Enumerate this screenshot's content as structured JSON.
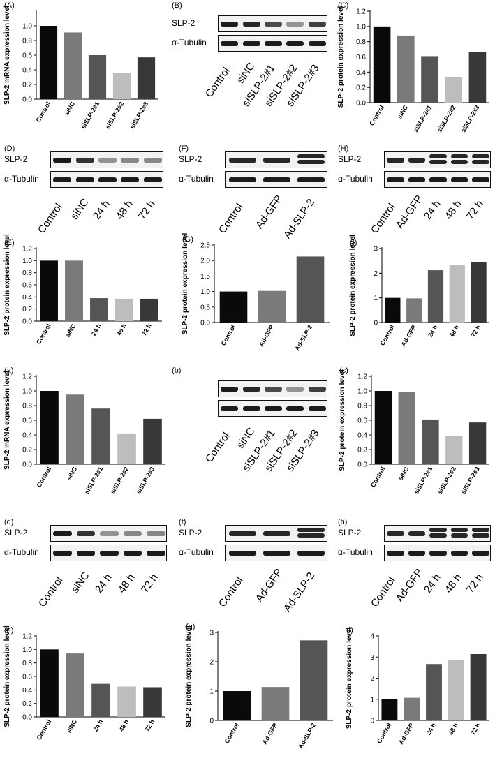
{
  "colors": {
    "black": "#0a0a0a",
    "gray2": "#7a7a7a",
    "gray3": "#555555",
    "light": "#bdbdbd",
    "dark": "#383838"
  },
  "charts": {
    "A": {
      "label": "(A)",
      "chart_data": {
        "type": "bar",
        "categories": [
          "Control",
          "siNC",
          "siSLP-2#1",
          "siSLP-2#2",
          "siSLP-2#3"
        ],
        "values": [
          1.0,
          0.91,
          0.6,
          0.36,
          0.57
        ],
        "ylabel": "SLP-2 mRNA expression level",
        "ylim": [
          0,
          1.2
        ],
        "yticks": [
          "0.0",
          "0.2",
          "0.4",
          "0.6",
          "0.8",
          "1.0"
        ],
        "colors": [
          "#0a0a0a",
          "#7a7a7a",
          "#555555",
          "#bdbdbd",
          "#383838"
        ]
      }
    },
    "C": {
      "label": "(C)",
      "chart_data": {
        "type": "bar",
        "categories": [
          "Control",
          "siNC",
          "siSLP-2#1",
          "siSLP-2#2",
          "siSLP-2#3"
        ],
        "values": [
          1.0,
          0.88,
          0.61,
          0.33,
          0.66
        ],
        "ylabel": "SLP-2 protein expression level",
        "ylim": [
          0,
          1.2
        ],
        "yticks": [
          "0.0",
          "0.2",
          "0.4",
          "0.6",
          "0.8",
          "1.0",
          "1.2"
        ],
        "colors": [
          "#0a0a0a",
          "#7a7a7a",
          "#555555",
          "#bdbdbd",
          "#383838"
        ]
      }
    },
    "E": {
      "label": "(E)",
      "chart_data": {
        "type": "bar",
        "categories": [
          "Control",
          "siNC",
          "24 h",
          "48 h",
          "72 h"
        ],
        "values": [
          1.0,
          1.0,
          0.38,
          0.37,
          0.37
        ],
        "ylabel": "SLP-2 protein expression level",
        "ylim": [
          0,
          1.2
        ],
        "yticks": [
          "0.0",
          "0.2",
          "0.4",
          "0.6",
          "0.8",
          "1.0",
          "1.2"
        ],
        "colors": [
          "#0a0a0a",
          "#7a7a7a",
          "#555555",
          "#bdbdbd",
          "#383838"
        ]
      }
    },
    "G": {
      "label": "(G)",
      "chart_data": {
        "type": "bar",
        "categories": [
          "Control",
          "Ad-GFP",
          "Ad-SLP-2"
        ],
        "values": [
          1.0,
          1.02,
          2.13
        ],
        "ylabel": "SLP-2 protein expression level",
        "ylim": [
          0,
          2.5
        ],
        "yticks": [
          "0.0",
          "0.5",
          "1.0",
          "1.5",
          "2.0",
          "2.5"
        ],
        "colors": [
          "#0a0a0a",
          "#7a7a7a",
          "#555555"
        ]
      }
    },
    "I": {
      "label": "(I)",
      "chart_data": {
        "type": "bar",
        "categories": [
          "Control",
          "Ad-GFP",
          "24 h",
          "48 h",
          "72 h"
        ],
        "values": [
          1.0,
          0.98,
          2.12,
          2.32,
          2.44
        ],
        "ylabel": "SLP-2 protein expression level",
        "ylim": [
          0,
          3
        ],
        "yticks": [
          "0",
          "1",
          "2",
          "3"
        ],
        "colors": [
          "#0a0a0a",
          "#7a7a7a",
          "#555555",
          "#bdbdbd",
          "#383838"
        ]
      }
    },
    "a": {
      "label": "(a)",
      "chart_data": {
        "type": "bar",
        "categories": [
          "Control",
          "siNC",
          "siSLP-2#1",
          "siSLP-2#2",
          "siSLP-2#3"
        ],
        "values": [
          1.0,
          0.95,
          0.76,
          0.42,
          0.62
        ],
        "ylabel": "SLP-2 mRNA expression level",
        "ylim": [
          0,
          1.2
        ],
        "yticks": [
          "0.0",
          "0.2",
          "0.4",
          "0.6",
          "0.8",
          "1.0",
          "1.2"
        ],
        "colors": [
          "#0a0a0a",
          "#7a7a7a",
          "#555555",
          "#bdbdbd",
          "#383838"
        ]
      }
    },
    "c": {
      "label": "(c)",
      "chart_data": {
        "type": "bar",
        "categories": [
          "Control",
          "siNC",
          "siSLP-2#1",
          "siSLP-2#2",
          "siSLP-2#3"
        ],
        "values": [
          1.0,
          0.99,
          0.61,
          0.39,
          0.57
        ],
        "ylabel": "SLP-2 protein expression level",
        "ylim": [
          0,
          1.2
        ],
        "yticks": [
          "0.0",
          "0.2",
          "0.4",
          "0.6",
          "0.8",
          "1.0",
          "1.2"
        ],
        "colors": [
          "#0a0a0a",
          "#7a7a7a",
          "#555555",
          "#bdbdbd",
          "#383838"
        ]
      }
    },
    "e": {
      "label": "(e)",
      "chart_data": {
        "type": "bar",
        "categories": [
          "Control",
          "siNC",
          "24 h",
          "48 h",
          "72 h"
        ],
        "values": [
          1.0,
          0.94,
          0.49,
          0.45,
          0.44
        ],
        "ylabel": "SLP-2 protein expression level",
        "ylim": [
          0,
          1.2
        ],
        "yticks": [
          "0.0",
          "0.2",
          "0.4",
          "0.6",
          "0.8",
          "1.0",
          "1.2"
        ],
        "colors": [
          "#0a0a0a",
          "#7a7a7a",
          "#555555",
          "#bdbdbd",
          "#383838"
        ]
      }
    },
    "g": {
      "label": "(g)",
      "chart_data": {
        "type": "bar",
        "categories": [
          "Control",
          "Ad-GFP",
          "Ad-SLP-2"
        ],
        "values": [
          1.0,
          1.14,
          2.73
        ],
        "ylabel": "SLP-2 protein expression level",
        "ylim": [
          0,
          3
        ],
        "yticks": [
          "0",
          "1",
          "2",
          "3"
        ],
        "colors": [
          "#0a0a0a",
          "#7a7a7a",
          "#555555"
        ]
      }
    },
    "i": {
      "label": "(i)",
      "chart_data": {
        "type": "bar",
        "categories": [
          "Control",
          "Ad-GFP",
          "24 h",
          "48 h",
          "72 h"
        ],
        "values": [
          1.0,
          1.07,
          2.67,
          2.87,
          3.14
        ],
        "ylabel": "SLP-2 protein expression level",
        "ylim": [
          0,
          4
        ],
        "yticks": [
          "0",
          "1",
          "2",
          "3",
          "4"
        ],
        "colors": [
          "#0a0a0a",
          "#7a7a7a",
          "#555555",
          "#bdbdbd",
          "#383838"
        ]
      }
    }
  },
  "blots": {
    "B": {
      "label": "(B)",
      "rows": [
        "SLP-2",
        "α-Tubulin"
      ],
      "lanes": [
        "Control",
        "siNC",
        "siSLP-2#1",
        "siSLP-2#2",
        "siSLP-2#3"
      ]
    },
    "D": {
      "label": "(D)",
      "rows": [
        "SLP-2",
        "α-Tubulin"
      ],
      "lanes": [
        "Control",
        "siNC",
        "24 h",
        "48 h",
        "72 h"
      ]
    },
    "F": {
      "label": "(F)",
      "rows": [
        "SLP-2",
        "α-Tubulin"
      ],
      "lanes": [
        "Control",
        "Ad-GFP",
        "Ad-SLP-2"
      ]
    },
    "H": {
      "label": "(H)",
      "rows": [
        "SLP-2",
        "α-Tubulin"
      ],
      "lanes": [
        "Control",
        "Ad-GFP",
        "24 h",
        "48 h",
        "72 h"
      ]
    },
    "b": {
      "label": "(b)",
      "rows": [
        "",
        ""
      ],
      "lanes": [
        "Control",
        "siNC",
        "siSLP-2#1",
        "siSLP-2#2",
        "siSLP-2#3"
      ]
    },
    "d": {
      "label": "(d)",
      "rows": [
        "SLP-2",
        "α-Tubulin"
      ],
      "lanes": [
        "Control",
        "siNC",
        "24 h",
        "48 h",
        "72 h"
      ]
    },
    "f": {
      "label": "(f)",
      "rows": [
        "SLP-2",
        "α-Tubulin"
      ],
      "lanes": [
        "Control",
        "Ad-GFP",
        "Ad-SLP-2"
      ]
    },
    "h": {
      "label": "(h)",
      "rows": [
        "SLP-2",
        "α-Tubulin"
      ],
      "lanes": [
        "Control",
        "Ad-GFP",
        "24 h",
        "48 h",
        "72 h"
      ]
    }
  }
}
